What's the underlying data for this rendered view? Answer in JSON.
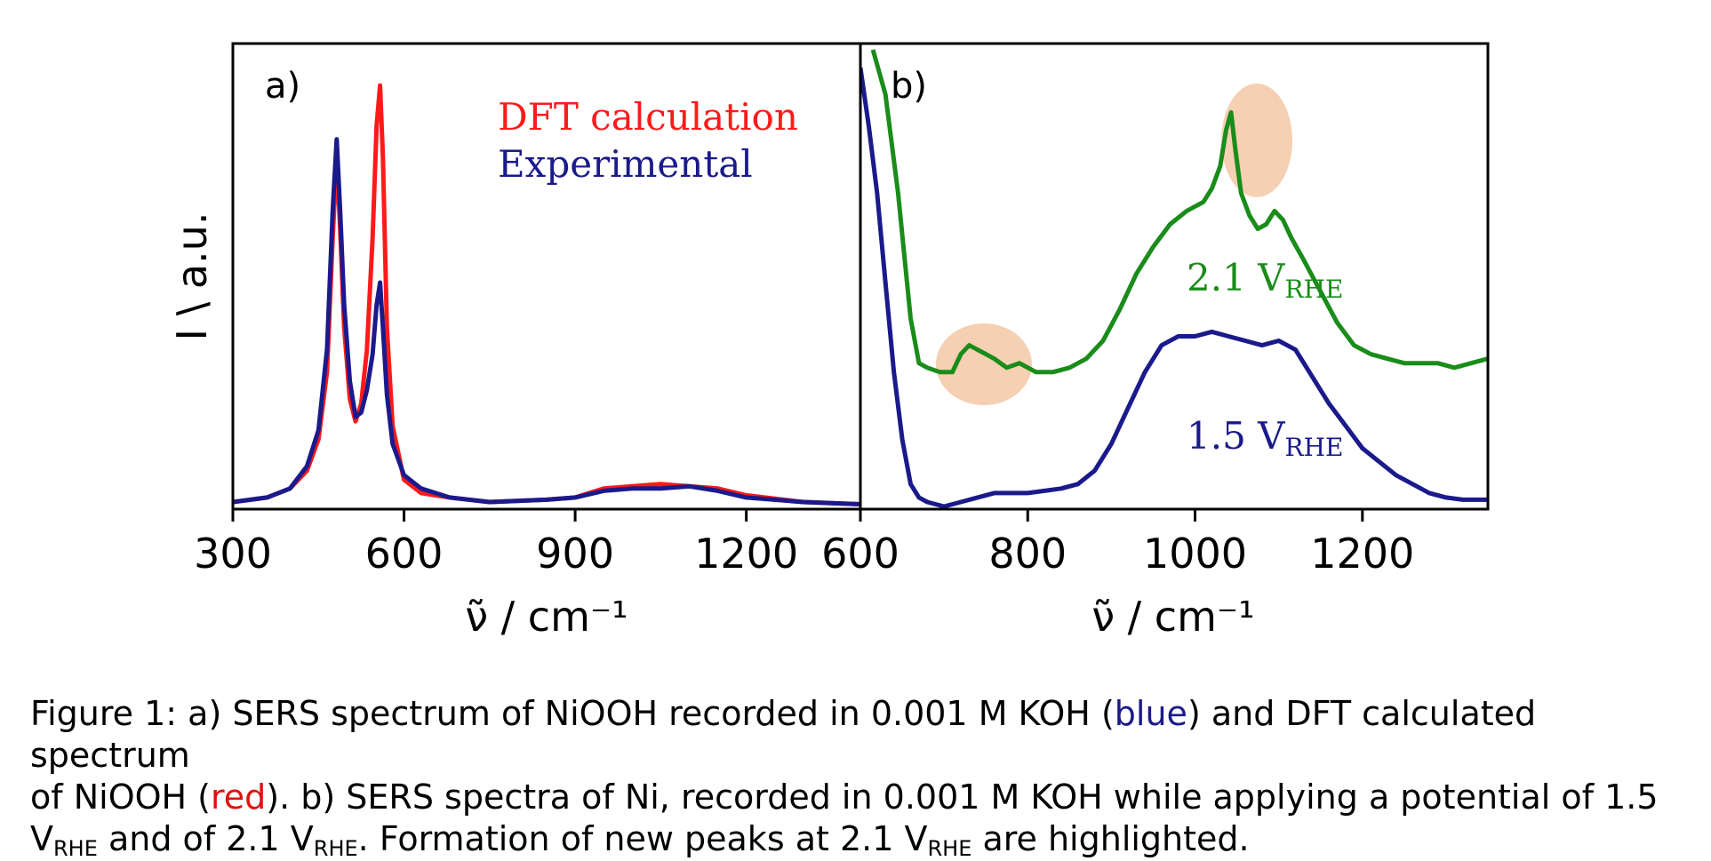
{
  "chart_data": [
    {
      "type": "line",
      "panel_label": "a)",
      "xlabel": "ν̃ / cm⁻¹",
      "ylabel": "I \\ a.u.",
      "xlim": [
        300,
        1400
      ],
      "xticks": [
        "300",
        "600",
        "900",
        "1200"
      ],
      "grid": false,
      "legend": "top-center",
      "series": [
        {
          "name": "DFT calculation",
          "color": "#ff1a1a",
          "x": [
            300,
            360,
            400,
            430,
            450,
            465,
            475,
            482,
            488,
            495,
            505,
            515,
            525,
            535,
            545,
            552,
            558,
            563,
            570,
            580,
            600,
            630,
            680,
            750,
            850,
            900,
            950,
            1000,
            1050,
            1100,
            1150,
            1200,
            1300,
            1400
          ],
          "y": [
            0.01,
            0.02,
            0.04,
            0.08,
            0.15,
            0.3,
            0.6,
            0.78,
            0.62,
            0.4,
            0.24,
            0.19,
            0.23,
            0.35,
            0.6,
            0.85,
            0.94,
            0.78,
            0.4,
            0.18,
            0.06,
            0.03,
            0.02,
            0.01,
            0.015,
            0.02,
            0.04,
            0.045,
            0.05,
            0.045,
            0.04,
            0.025,
            0.01,
            0.005
          ]
        },
        {
          "name": "Experimental",
          "color": "#1a1a8c",
          "x": [
            300,
            360,
            400,
            430,
            450,
            465,
            475,
            482,
            488,
            495,
            505,
            515,
            525,
            535,
            545,
            552,
            558,
            563,
            570,
            580,
            600,
            630,
            680,
            750,
            850,
            900,
            950,
            1000,
            1050,
            1100,
            1150,
            1200,
            1300,
            1400
          ],
          "y": [
            0.01,
            0.02,
            0.04,
            0.09,
            0.17,
            0.35,
            0.66,
            0.82,
            0.66,
            0.45,
            0.28,
            0.2,
            0.21,
            0.26,
            0.34,
            0.45,
            0.5,
            0.4,
            0.25,
            0.14,
            0.07,
            0.04,
            0.02,
            0.01,
            0.015,
            0.02,
            0.035,
            0.04,
            0.04,
            0.045,
            0.035,
            0.02,
            0.01,
            0.005
          ]
        }
      ]
    },
    {
      "type": "line",
      "panel_label": "b)",
      "xlabel": "ν̃ / cm⁻¹",
      "xlim": [
        600,
        1350
      ],
      "xticks": [
        "600",
        "800",
        "1000",
        "1200"
      ],
      "grid": false,
      "legend": "inline",
      "series": [
        {
          "name": "2.1 VRHE",
          "color": "#1a8c1a",
          "x": [
            615,
            630,
            645,
            660,
            670,
            680,
            695,
            710,
            720,
            730,
            740,
            750,
            760,
            775,
            790,
            810,
            830,
            850,
            870,
            890,
            910,
            930,
            950,
            970,
            990,
            1010,
            1020,
            1030,
            1037,
            1043,
            1048,
            1055,
            1065,
            1075,
            1085,
            1095,
            1105,
            1115,
            1130,
            1150,
            1170,
            1190,
            1210,
            1230,
            1250,
            1270,
            1290,
            1310,
            1330,
            1350
          ],
          "y": [
            1.02,
            0.92,
            0.7,
            0.42,
            0.32,
            0.31,
            0.3,
            0.3,
            0.34,
            0.36,
            0.35,
            0.34,
            0.33,
            0.31,
            0.32,
            0.3,
            0.3,
            0.31,
            0.33,
            0.37,
            0.44,
            0.52,
            0.58,
            0.63,
            0.66,
            0.68,
            0.71,
            0.76,
            0.84,
            0.88,
            0.8,
            0.7,
            0.65,
            0.62,
            0.63,
            0.66,
            0.64,
            0.6,
            0.55,
            0.48,
            0.41,
            0.36,
            0.34,
            0.33,
            0.32,
            0.32,
            0.32,
            0.31,
            0.32,
            0.33
          ]
        },
        {
          "name": "1.5 VRHE",
          "color": "#1a1a8c",
          "x": [
            600,
            610,
            620,
            630,
            640,
            650,
            660,
            670,
            680,
            690,
            700,
            720,
            740,
            760,
            780,
            800,
            820,
            840,
            860,
            880,
            900,
            920,
            940,
            960,
            980,
            1000,
            1020,
            1040,
            1060,
            1080,
            1100,
            1120,
            1140,
            1160,
            1180,
            1200,
            1220,
            1240,
            1260,
            1280,
            1300,
            1320,
            1340,
            1350
          ],
          "y": [
            0.98,
            0.85,
            0.7,
            0.5,
            0.3,
            0.15,
            0.05,
            0.02,
            0.01,
            0.005,
            0,
            0.01,
            0.02,
            0.03,
            0.03,
            0.03,
            0.035,
            0.04,
            0.05,
            0.08,
            0.14,
            0.22,
            0.3,
            0.36,
            0.38,
            0.38,
            0.39,
            0.38,
            0.37,
            0.36,
            0.37,
            0.35,
            0.29,
            0.23,
            0.18,
            0.13,
            0.1,
            0.07,
            0.05,
            0.03,
            0.02,
            0.015,
            0.015,
            0.015
          ]
        }
      ]
    }
  ],
  "legend": {
    "dft_label": "DFT calculation",
    "exp_label": "Experimental"
  },
  "labels_b": {
    "high_value": "2.1 V",
    "high_sub": "RHE",
    "low_value": "1.5 V",
    "low_sub": "RHE"
  },
  "highlights": {
    "color": "#f4c8a4"
  },
  "caption": {
    "l1_a": "Figure 1: a) SERS spectrum of NiOOH recorded in 0.001 M KOH (",
    "l1_blue": "blue",
    "l1_b": ") and DFT calculated spectrum",
    "l2_a": "of NiOOH (",
    "l2_red": "red",
    "l2_b": "). b) SERS spectra of Ni, recorded in 0.001 M KOH while applying a potential of 1.5",
    "l3_v1": "V",
    "l3_sub1": "RHE",
    "l3_a": " and of 2.1 V",
    "l3_sub2": "RHE",
    "l3_b": ". Formation of new peaks at 2.1 V",
    "l3_sub3": "RHE",
    "l3_c": " are highlighted.",
    "blue_color": "#1a1a8c",
    "red_color": "#e01010"
  }
}
